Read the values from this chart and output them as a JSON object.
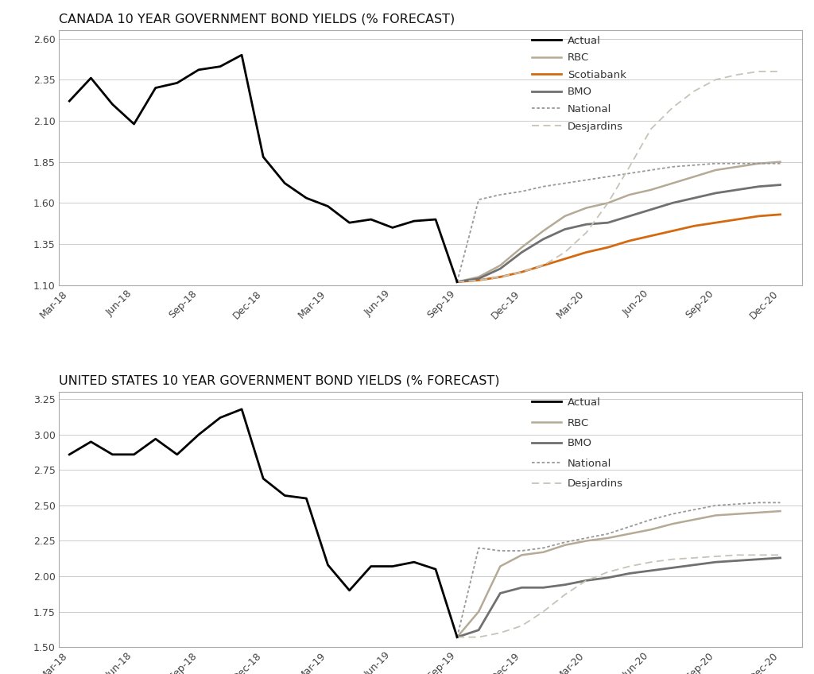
{
  "canada": {
    "title": "CANADA 10 YEAR GOVERNMENT BOND YIELDS (% FORECAST)",
    "ylim": [
      1.1,
      2.65
    ],
    "yticks": [
      1.1,
      1.35,
      1.6,
      1.85,
      2.1,
      2.35,
      2.6
    ],
    "ytick_labels": [
      "1.10",
      "1.35",
      "1.60",
      "1.85",
      "2.10",
      "2.35",
      "2.60"
    ],
    "actual_x": [
      0,
      1,
      2,
      3,
      4,
      5,
      6,
      7,
      8,
      9,
      10,
      11,
      12,
      13,
      14,
      15,
      16,
      17,
      18
    ],
    "actual_y": [
      2.22,
      2.36,
      2.2,
      2.08,
      2.3,
      2.33,
      2.41,
      2.43,
      2.5,
      1.88,
      1.72,
      1.63,
      1.58,
      1.48,
      1.5,
      1.45,
      1.49,
      1.5,
      1.12
    ],
    "rbc_x": [
      18,
      19,
      20,
      21,
      22,
      23,
      24,
      25,
      26,
      27,
      28,
      29,
      30,
      31,
      32,
      33
    ],
    "rbc_y": [
      1.12,
      1.15,
      1.22,
      1.33,
      1.43,
      1.52,
      1.57,
      1.6,
      1.65,
      1.68,
      1.72,
      1.76,
      1.8,
      1.82,
      1.84,
      1.85
    ],
    "scotiabank_x": [
      18,
      19,
      20,
      21,
      22,
      23,
      24,
      25,
      26,
      27,
      28,
      29,
      30,
      31,
      32,
      33
    ],
    "scotiabank_y": [
      1.12,
      1.13,
      1.15,
      1.18,
      1.22,
      1.26,
      1.3,
      1.33,
      1.37,
      1.4,
      1.43,
      1.46,
      1.48,
      1.5,
      1.52,
      1.53
    ],
    "bmo_x": [
      18,
      19,
      20,
      21,
      22,
      23,
      24,
      25,
      26,
      27,
      28,
      29,
      30,
      31,
      32,
      33
    ],
    "bmo_y": [
      1.12,
      1.14,
      1.2,
      1.3,
      1.38,
      1.44,
      1.47,
      1.48,
      1.52,
      1.56,
      1.6,
      1.63,
      1.66,
      1.68,
      1.7,
      1.71
    ],
    "national_x": [
      18,
      19,
      20,
      21,
      22,
      23,
      24,
      25,
      26,
      27,
      28,
      29,
      30,
      31,
      32,
      33
    ],
    "national_y": [
      1.12,
      1.62,
      1.65,
      1.67,
      1.7,
      1.72,
      1.74,
      1.76,
      1.78,
      1.8,
      1.82,
      1.83,
      1.84,
      1.84,
      1.84,
      1.84
    ],
    "desjardins_x": [
      18,
      19,
      20,
      21,
      22,
      23,
      24,
      25,
      26,
      27,
      28,
      29,
      30,
      31,
      32,
      33
    ],
    "desjardins_y": [
      1.12,
      1.13,
      1.15,
      1.18,
      1.22,
      1.3,
      1.42,
      1.6,
      1.82,
      2.05,
      2.18,
      2.28,
      2.35,
      2.38,
      2.4,
      2.4
    ]
  },
  "us": {
    "title": "UNITED STATES 10 YEAR GOVERNMENT BOND YIELDS (% FORECAST)",
    "ylim": [
      1.5,
      3.3
    ],
    "yticks": [
      1.5,
      1.75,
      2.0,
      2.25,
      2.5,
      2.75,
      3.0,
      3.25
    ],
    "ytick_labels": [
      "1.50",
      "1.75",
      "2.00",
      "2.25",
      "2.50",
      "2.75",
      "3.00",
      "3.25"
    ],
    "actual_x": [
      0,
      1,
      2,
      3,
      4,
      5,
      6,
      7,
      8,
      9,
      10,
      11,
      12,
      13,
      14,
      15,
      16,
      17,
      18
    ],
    "actual_y": [
      2.86,
      2.95,
      2.86,
      2.86,
      2.97,
      2.86,
      3.0,
      3.12,
      3.18,
      2.69,
      2.57,
      2.55,
      2.08,
      1.9,
      2.07,
      2.07,
      2.1,
      2.05,
      1.57
    ],
    "rbc_x": [
      18,
      19,
      20,
      21,
      22,
      23,
      24,
      25,
      26,
      27,
      28,
      29,
      30,
      31,
      32,
      33
    ],
    "rbc_y": [
      1.57,
      1.75,
      2.07,
      2.15,
      2.17,
      2.22,
      2.25,
      2.27,
      2.3,
      2.33,
      2.37,
      2.4,
      2.43,
      2.44,
      2.45,
      2.46
    ],
    "bmo_x": [
      18,
      19,
      20,
      21,
      22,
      23,
      24,
      25,
      26,
      27,
      28,
      29,
      30,
      31,
      32,
      33
    ],
    "bmo_y": [
      1.57,
      1.62,
      1.88,
      1.92,
      1.92,
      1.94,
      1.97,
      1.99,
      2.02,
      2.04,
      2.06,
      2.08,
      2.1,
      2.11,
      2.12,
      2.13
    ],
    "national_x": [
      18,
      19,
      20,
      21,
      22,
      23,
      24,
      25,
      26,
      27,
      28,
      29,
      30,
      31,
      32,
      33
    ],
    "national_y": [
      1.57,
      2.2,
      2.18,
      2.18,
      2.2,
      2.24,
      2.27,
      2.3,
      2.35,
      2.4,
      2.44,
      2.47,
      2.5,
      2.51,
      2.52,
      2.52
    ],
    "desjardins_x": [
      18,
      19,
      20,
      21,
      22,
      23,
      24,
      25,
      26,
      27,
      28,
      29,
      30,
      31,
      32,
      33
    ],
    "desjardins_y": [
      1.57,
      1.57,
      1.6,
      1.65,
      1.75,
      1.87,
      1.97,
      2.03,
      2.07,
      2.1,
      2.12,
      2.13,
      2.14,
      2.15,
      2.15,
      2.15
    ]
  },
  "xtick_labels": [
    "Mar-18",
    "Jun-18",
    "Sep-18",
    "Dec-18",
    "Mar-19",
    "Jun-19",
    "Sep-19",
    "Dec-19",
    "Mar-20",
    "Jun-20",
    "Sep-20",
    "Dec-20"
  ],
  "xtick_positions": [
    0,
    3,
    6,
    9,
    12,
    15,
    18,
    21,
    24,
    27,
    30,
    33
  ],
  "color_actual": "#000000",
  "color_rbc": "#b5aa96",
  "color_scotiabank": "#d46a10",
  "color_bmo": "#707070",
  "color_national": "#999999",
  "color_desjardins": "#c8c3b8",
  "background": "#ffffff"
}
